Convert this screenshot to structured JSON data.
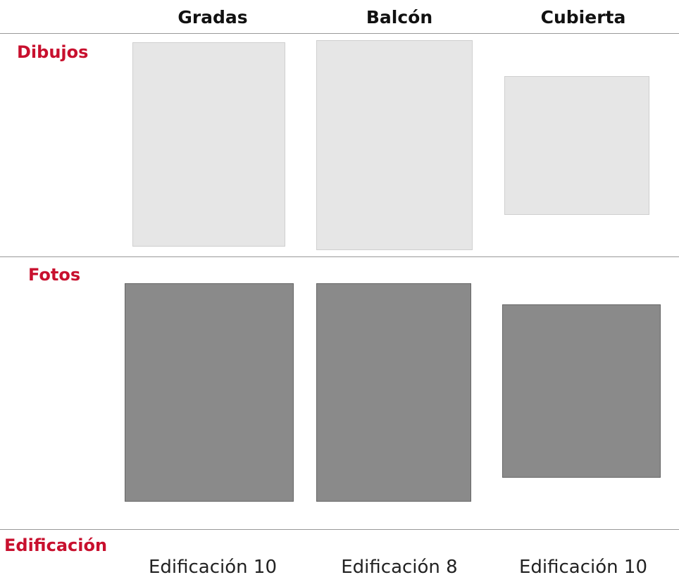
{
  "table": {
    "columns": [
      "Gradas",
      "Balcón",
      "Cubierta"
    ],
    "rows": [
      {
        "label": "Dibujos"
      },
      {
        "label": "Fotos"
      },
      {
        "label": "Edificación",
        "values": [
          "Edificación 10",
          "Edificación 8",
          "Edificación 10"
        ]
      }
    ]
  }
}
